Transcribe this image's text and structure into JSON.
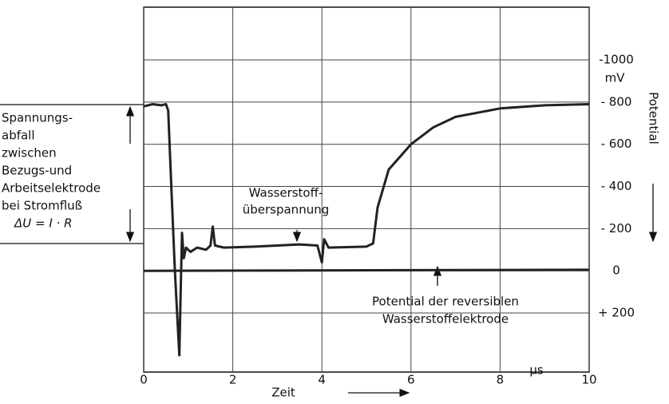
{
  "chart_data": {
    "type": "line",
    "xlabel": "Zeit",
    "ylabel": "Potential",
    "y_unit": "mV",
    "x_unit": "µs",
    "xlim": [
      0,
      10
    ],
    "xticks": [
      0,
      2,
      4,
      6,
      8,
      10
    ],
    "ylim": [
      -1250,
      480
    ],
    "yticks": [
      {
        "value": -1000,
        "label": "-1000"
      },
      {
        "value": -800,
        "label": "- 800"
      },
      {
        "value": -600,
        "label": "- 600"
      },
      {
        "value": -400,
        "label": "- 400"
      },
      {
        "value": -200,
        "label": "- 200"
      },
      0,
      {
        "value": 200,
        "label": "+ 200"
      }
    ],
    "grid": true,
    "series": [
      {
        "color": "#222222",
        "x": [
          0,
          0.2,
          0.4,
          0.5,
          0.55,
          0.62,
          0.7,
          0.75,
          0.8,
          0.83,
          0.86,
          0.9,
          0.95,
          1.05,
          1.2,
          1.4,
          1.5,
          1.55,
          1.6,
          1.8,
          2.5,
          3.5,
          3.9,
          4.0,
          4.05,
          4.15,
          5.0,
          5.15,
          5.25,
          5.5,
          6,
          6.5,
          7,
          8,
          9,
          10
        ],
        "values": [
          -780,
          -790,
          -785,
          -790,
          -760,
          -400,
          0,
          200,
          400,
          100,
          -180,
          -60,
          -110,
          -90,
          -110,
          -100,
          -120,
          -210,
          -120,
          -110,
          -115,
          -125,
          -120,
          -40,
          -150,
          -110,
          -115,
          -130,
          -300,
          -480,
          -600,
          -680,
          -730,
          -770,
          -785,
          -790
        ]
      },
      {
        "color": "#222222",
        "x": [
          0,
          10
        ],
        "values": [
          0,
          -5
        ]
      }
    ],
    "annotations": [
      {
        "lines": [
          "Spannungs-",
          "abfall",
          "zwischen",
          "Bezugs-und",
          "Arbeitselektrode",
          "bei Stromfluß",
          "ΔU = I · R"
        ]
      },
      {
        "lines": [
          "Wasserstoff-",
          "überspannung"
        ]
      },
      {
        "lines": [
          "Potential der reversiblen",
          "Wasserstoffelektrode"
        ]
      }
    ]
  }
}
